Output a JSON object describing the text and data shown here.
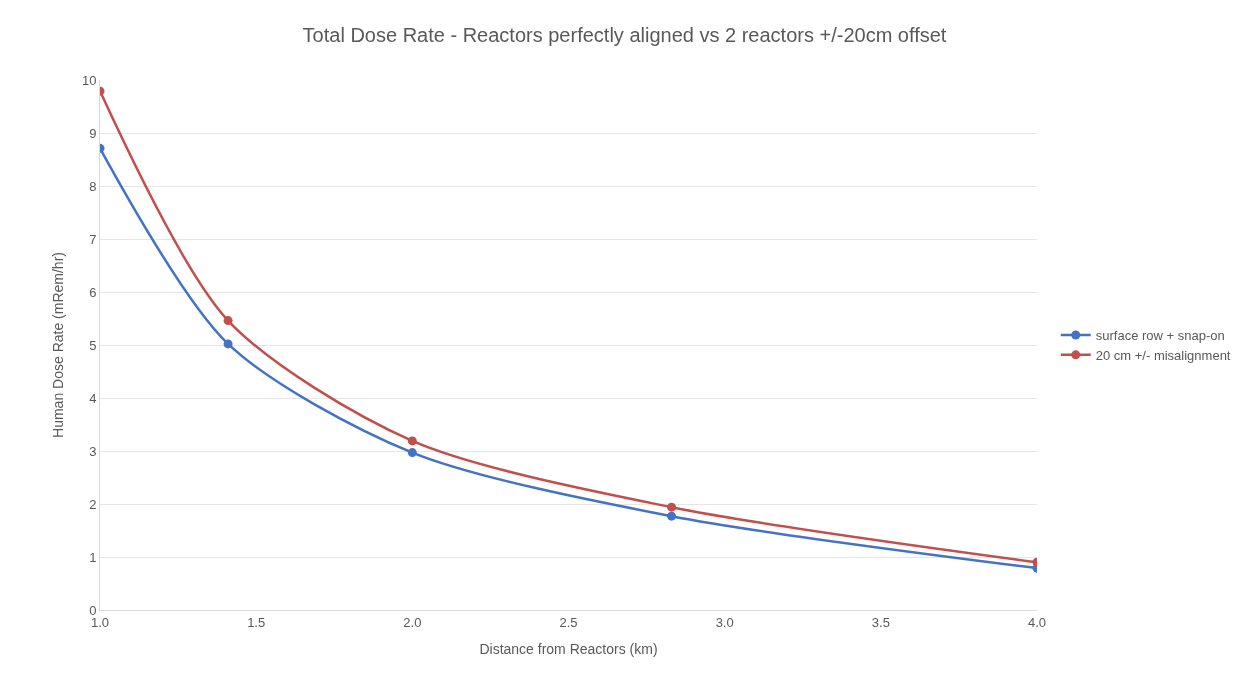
{
  "chart_data": {
    "type": "line",
    "title": "Total Dose Rate - Reactors perfectly aligned vs 2 reactors +/-20cm offset",
    "xlabel": "Distance from Reactors (km)",
    "ylabel": "Human Dose Rate (mRem/hr)",
    "x": [
      1.0,
      1.41,
      2.0,
      2.83,
      4.0
    ],
    "series": [
      {
        "name": "surface row + snap-on",
        "color": "#4472c4",
        "values": [
          8.71,
          5.02,
          2.97,
          1.77,
          0.79
        ]
      },
      {
        "name": "20 cm +/- misalignment",
        "color": "#c0504d",
        "values": [
          9.79,
          5.46,
          3.19,
          1.94,
          0.9
        ]
      }
    ],
    "xlim": [
      1.0,
      4.0
    ],
    "xticks": [
      {
        "value": 1.0,
        "label": "1.0"
      },
      {
        "value": 1.5,
        "label": "1.5"
      },
      {
        "value": 2.0,
        "label": "2.0"
      },
      {
        "value": 2.5,
        "label": "2.5"
      },
      {
        "value": 3.0,
        "label": "3.0"
      },
      {
        "value": 3.5,
        "label": "3.5"
      },
      {
        "value": 4.0,
        "label": "4.0"
      }
    ],
    "ylim": [
      0,
      10
    ],
    "yticks": [
      0,
      1,
      2,
      3,
      4,
      5,
      6,
      7,
      8,
      9,
      10
    ],
    "grid": "y",
    "legend": "right",
    "marker": "circle",
    "line_style": "solid"
  }
}
